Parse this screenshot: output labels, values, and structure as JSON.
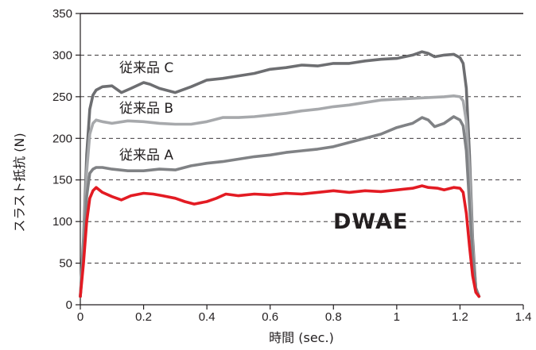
{
  "chart_data": {
    "type": "line",
    "xlabel": "時間 (sec.)",
    "ylabel": "スラスト抵抗 (N)",
    "xlim": [
      0,
      1.4
    ],
    "ylim": [
      0,
      350
    ],
    "x_ticks": [
      "0",
      "0.2",
      "0.4",
      "0.6",
      "0.8",
      "1",
      "1.2",
      "1.4"
    ],
    "y_ticks": [
      "0",
      "50",
      "100",
      "150",
      "200",
      "250",
      "300",
      "350"
    ],
    "grid": "horizontal dashed",
    "series": [
      {
        "name": "従来品 C",
        "color": "#6d6e71",
        "points": [
          [
            0,
            10
          ],
          [
            0.01,
            80
          ],
          [
            0.02,
            180
          ],
          [
            0.03,
            235
          ],
          [
            0.04,
            252
          ],
          [
            0.05,
            258
          ],
          [
            0.07,
            262
          ],
          [
            0.1,
            263
          ],
          [
            0.13,
            255
          ],
          [
            0.16,
            260
          ],
          [
            0.2,
            267
          ],
          [
            0.22,
            265
          ],
          [
            0.25,
            260
          ],
          [
            0.3,
            255
          ],
          [
            0.35,
            262
          ],
          [
            0.4,
            270
          ],
          [
            0.45,
            272
          ],
          [
            0.5,
            275
          ],
          [
            0.55,
            278
          ],
          [
            0.6,
            283
          ],
          [
            0.65,
            285
          ],
          [
            0.7,
            288
          ],
          [
            0.75,
            287
          ],
          [
            0.8,
            290
          ],
          [
            0.85,
            290
          ],
          [
            0.9,
            293
          ],
          [
            0.95,
            295
          ],
          [
            1.0,
            296
          ],
          [
            1.05,
            300
          ],
          [
            1.08,
            304
          ],
          [
            1.1,
            302
          ],
          [
            1.12,
            298
          ],
          [
            1.15,
            300
          ],
          [
            1.18,
            301
          ],
          [
            1.2,
            297
          ],
          [
            1.21,
            290
          ],
          [
            1.22,
            260
          ],
          [
            1.23,
            180
          ],
          [
            1.24,
            80
          ],
          [
            1.25,
            20
          ],
          [
            1.26,
            10
          ]
        ]
      },
      {
        "name": "従来品 B",
        "color": "#a7a9ac",
        "points": [
          [
            0,
            10
          ],
          [
            0.01,
            70
          ],
          [
            0.02,
            160
          ],
          [
            0.03,
            205
          ],
          [
            0.04,
            218
          ],
          [
            0.05,
            222
          ],
          [
            0.07,
            220
          ],
          [
            0.1,
            218
          ],
          [
            0.15,
            221
          ],
          [
            0.2,
            220
          ],
          [
            0.25,
            218
          ],
          [
            0.3,
            217
          ],
          [
            0.35,
            217
          ],
          [
            0.4,
            220
          ],
          [
            0.45,
            225
          ],
          [
            0.5,
            225
          ],
          [
            0.55,
            226
          ],
          [
            0.6,
            228
          ],
          [
            0.65,
            230
          ],
          [
            0.7,
            233
          ],
          [
            0.75,
            235
          ],
          [
            0.8,
            238
          ],
          [
            0.85,
            240
          ],
          [
            0.9,
            243
          ],
          [
            0.95,
            246
          ],
          [
            1.0,
            247
          ],
          [
            1.05,
            248
          ],
          [
            1.1,
            249
          ],
          [
            1.15,
            250
          ],
          [
            1.18,
            251
          ],
          [
            1.2,
            250
          ],
          [
            1.21,
            245
          ],
          [
            1.22,
            220
          ],
          [
            1.23,
            160
          ],
          [
            1.24,
            70
          ],
          [
            1.25,
            20
          ],
          [
            1.26,
            10
          ]
        ]
      },
      {
        "name": "従来品 A",
        "color": "#808285",
        "points": [
          [
            0,
            10
          ],
          [
            0.01,
            60
          ],
          [
            0.02,
            130
          ],
          [
            0.03,
            158
          ],
          [
            0.04,
            163
          ],
          [
            0.05,
            165
          ],
          [
            0.07,
            165
          ],
          [
            0.1,
            163
          ],
          [
            0.15,
            161
          ],
          [
            0.2,
            161
          ],
          [
            0.25,
            163
          ],
          [
            0.3,
            162
          ],
          [
            0.35,
            167
          ],
          [
            0.4,
            170
          ],
          [
            0.45,
            172
          ],
          [
            0.5,
            175
          ],
          [
            0.55,
            178
          ],
          [
            0.6,
            180
          ],
          [
            0.65,
            183
          ],
          [
            0.7,
            185
          ],
          [
            0.75,
            187
          ],
          [
            0.8,
            190
          ],
          [
            0.85,
            195
          ],
          [
            0.9,
            200
          ],
          [
            0.95,
            205
          ],
          [
            1.0,
            213
          ],
          [
            1.05,
            218
          ],
          [
            1.08,
            225
          ],
          [
            1.1,
            222
          ],
          [
            1.12,
            214
          ],
          [
            1.15,
            218
          ],
          [
            1.18,
            226
          ],
          [
            1.2,
            222
          ],
          [
            1.21,
            215
          ],
          [
            1.22,
            185
          ],
          [
            1.23,
            120
          ],
          [
            1.24,
            60
          ],
          [
            1.25,
            20
          ],
          [
            1.26,
            10
          ]
        ]
      },
      {
        "name": "DWAE",
        "color": "#e31b23",
        "points": [
          [
            0,
            10
          ],
          [
            0.01,
            50
          ],
          [
            0.02,
            100
          ],
          [
            0.03,
            128
          ],
          [
            0.04,
            137
          ],
          [
            0.05,
            141
          ],
          [
            0.07,
            135
          ],
          [
            0.1,
            130
          ],
          [
            0.13,
            126
          ],
          [
            0.16,
            131
          ],
          [
            0.2,
            134
          ],
          [
            0.23,
            133
          ],
          [
            0.26,
            131
          ],
          [
            0.3,
            128
          ],
          [
            0.33,
            124
          ],
          [
            0.36,
            121
          ],
          [
            0.4,
            124
          ],
          [
            0.43,
            128
          ],
          [
            0.46,
            133
          ],
          [
            0.5,
            131
          ],
          [
            0.55,
            133
          ],
          [
            0.6,
            132
          ],
          [
            0.65,
            134
          ],
          [
            0.7,
            133
          ],
          [
            0.75,
            135
          ],
          [
            0.8,
            137
          ],
          [
            0.85,
            135
          ],
          [
            0.9,
            137
          ],
          [
            0.95,
            136
          ],
          [
            1.0,
            138
          ],
          [
            1.05,
            140
          ],
          [
            1.08,
            143
          ],
          [
            1.1,
            141
          ],
          [
            1.13,
            140
          ],
          [
            1.15,
            138
          ],
          [
            1.18,
            141
          ],
          [
            1.2,
            140
          ],
          [
            1.21,
            135
          ],
          [
            1.22,
            110
          ],
          [
            1.23,
            70
          ],
          [
            1.24,
            35
          ],
          [
            1.25,
            15
          ],
          [
            1.26,
            10
          ]
        ]
      }
    ],
    "labels": {
      "c": "従来品 C",
      "b": "従来品 B",
      "a": "従来品 A",
      "dwae": "DWAE"
    }
  }
}
